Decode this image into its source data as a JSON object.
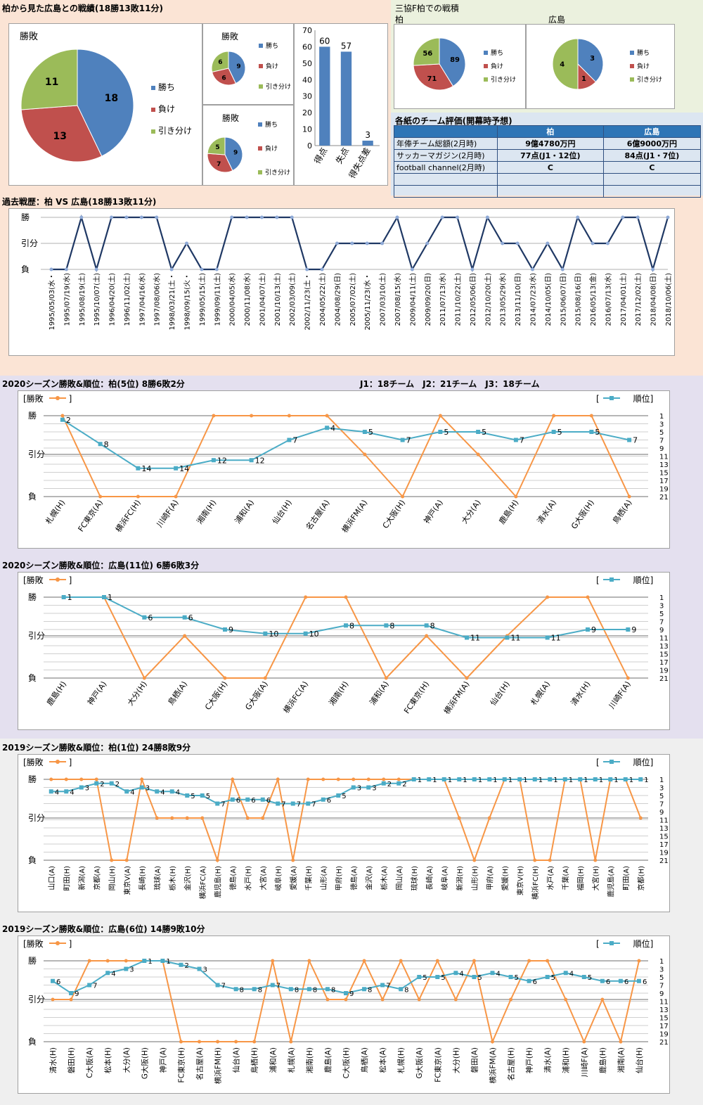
{
  "header": {
    "title": "柏から見た広島との戦績(18勝13敗11分)",
    "mitsukyo_title": "三協F柏での戦積",
    "kashiwa": "柏",
    "hiroshima": "広島"
  },
  "colors": {
    "win": "#4f81bd",
    "loss": "#c0504d",
    "draw": "#9bbb59",
    "rank": "#4bacc6",
    "result": "#f79646",
    "line": "#1f3864"
  },
  "legend": {
    "win": "勝ち",
    "loss": "負け",
    "draw": "引き分け",
    "pie_title": "勝敗"
  },
  "eval_table": {
    "title": "各紙のチーム評価(開幕時予想)",
    "headers": [
      "",
      "柏",
      "広島"
    ],
    "rows": [
      [
        "年俸チーム総額(2月時)",
        "9億4780万円",
        "6億9000万円"
      ],
      [
        "サッカーマガジン(2月時)",
        "77点(J1・12位)",
        "84点(J1・7位)"
      ],
      [
        "football channel(2月時)",
        "C",
        "C"
      ],
      [
        "",
        "",
        ""
      ],
      [
        "",
        "",
        ""
      ]
    ]
  },
  "season_labels": {
    "s1": "2020シーズン勝敗&順位：柏(5位) 8勝6敗2分",
    "s1_info": "J1：18チーム　J2：21チーム　J3：18チーム",
    "s2": "2020シーズン勝敗&順位：広島(11位) 6勝6敗3分",
    "s3": "2019シーズン勝敗&順位：柏(1位) 24勝8敗9分",
    "s4": "2019シーズン勝敗&順位：広島(6位) 14勝9敗10分",
    "legend_result": "[勝敗　　　]",
    "legend_rank": "[　　　　順位]"
  },
  "chart_data": [
    {
      "type": "pie",
      "title": "勝敗",
      "labels": [
        "勝ち",
        "負け",
        "引き分け"
      ],
      "values": [
        18,
        13,
        11
      ]
    },
    {
      "type": "pie",
      "title": "勝敗",
      "labels": [
        "勝ち",
        "負け",
        "引き分け"
      ],
      "values": [
        9,
        6,
        6
      ]
    },
    {
      "type": "pie",
      "title": "勝敗",
      "labels": [
        "勝ち",
        "負け",
        "引き分け"
      ],
      "values": [
        9,
        7,
        5
      ]
    },
    {
      "type": "bar",
      "categories": [
        "得点",
        "失点",
        "得失点差"
      ],
      "values": [
        60,
        57,
        3
      ],
      "ylim": [
        0,
        70
      ],
      "yticks": [
        0,
        10,
        20,
        30,
        40,
        50,
        60,
        70
      ]
    },
    {
      "type": "pie",
      "title": "柏",
      "labels": [
        "勝ち",
        "負け",
        "引き分け"
      ],
      "values": [
        89,
        71,
        56
      ]
    },
    {
      "type": "pie",
      "title": "広島",
      "labels": [
        "勝ち",
        "負け",
        "引き分け"
      ],
      "values": [
        3,
        1,
        4
      ]
    },
    {
      "type": "line",
      "title": "過去戦歴：柏 VS 広島(18勝13敗11分)",
      "y_categories": [
        "負",
        "引分",
        "勝"
      ],
      "x": [
        "1995/05/03(水・",
        "1995/07/19(水)",
        "1995/08/19(土)",
        "1995/10/07(土)",
        "1996/04/20(土)",
        "1996/11/02(土)",
        "1997/04/16(水)",
        "1997/08/06(水)",
        "1998/03/21(土・",
        "1998/09/15(火・",
        "1999/05/15(土)",
        "1999/09/11(土)",
        "2000/04/05(水)",
        "2000/11/08(水)",
        "2001/04/07(土)",
        "2001/10/13(土)",
        "2002/03/09(土)",
        "2002/11/23(土・",
        "2004/05/22(土)",
        "2004/08/29(日)",
        "2005/07/02(土)",
        "2005/11/23(水・",
        "2007/03/10(土)",
        "2007/08/15(水)",
        "2009/04/11(土)",
        "2009/09/20(日)",
        "2011/07/13(水)",
        "2011/10/22(土)",
        "2012/05/06(日)",
        "2012/10/20(土)",
        "2013/05/29(水)",
        "2013/11/10(日)",
        "2014/07/23(水)",
        "2014/10/05(日)",
        "2015/06/07(日)",
        "2015/08/16(日)",
        "2016/05/13(金)",
        "2016/07/13(水)",
        "2017/04/01(土)",
        "2017/12/02(土)",
        "2018/04/08(日)",
        "2018/10/06(土)"
      ],
      "values": [
        0,
        0,
        2,
        0,
        2,
        2,
        2,
        2,
        0,
        1,
        0,
        0,
        2,
        2,
        2,
        2,
        2,
        0,
        0,
        1,
        1,
        1,
        1,
        2,
        0,
        1,
        2,
        2,
        0,
        2,
        1,
        1,
        0,
        1,
        0,
        2,
        1,
        1,
        2,
        2,
        0,
        2
      ]
    },
    {
      "type": "line",
      "title": "2020シーズン勝敗&順位：柏(5位) 8勝6敗2分",
      "x": [
        "札幌(H)",
        "FC東京(A)",
        "横浜FC(H)",
        "川崎F(A)",
        "湘南(H)",
        "浦和(A)",
        "仙台(H)",
        "名古屋(A)",
        "横浜FM(A)",
        "C大阪(H)",
        "神戸(A)",
        "大分(A)",
        "鹿島(H)",
        "清水(A)",
        "G大阪(H)",
        "鳥栖(A)"
      ],
      "series": [
        {
          "name": "勝敗",
          "values": [
            2,
            0,
            0,
            0,
            2,
            2,
            2,
            2,
            1,
            0,
            2,
            1,
            0,
            2,
            2,
            0
          ]
        },
        {
          "name": "順位",
          "values": [
            2,
            8,
            14,
            14,
            12,
            12,
            7,
            4,
            5,
            7,
            5,
            5,
            7,
            5,
            5,
            7
          ]
        }
      ],
      "y_left": [
        "負",
        "引分",
        "勝"
      ],
      "y_right": [
        1,
        3,
        5,
        7,
        9,
        11,
        13,
        15,
        17,
        19,
        21
      ]
    },
    {
      "type": "line",
      "title": "2020シーズン勝敗&順位：広島(11位) 6勝6敗3分",
      "x": [
        "鹿島(H)",
        "神戸(A)",
        "大分(H)",
        "鳥栖(A)",
        "C大阪(H)",
        "G大阪(A)",
        "横浜FC(A)",
        "湘南(H)",
        "浦和(A)",
        "FC東京(H)",
        "横浜FM(A)",
        "仙台(H)",
        "札幌(A)",
        "清水(H)",
        "川崎F(A)"
      ],
      "series": [
        {
          "name": "勝敗",
          "values": [
            2,
            2,
            0,
            1,
            0,
            0,
            2,
            2,
            0,
            1,
            0,
            1,
            2,
            2,
            0
          ]
        },
        {
          "name": "順位",
          "values": [
            1,
            1,
            6,
            6,
            9,
            10,
            10,
            8,
            8,
            8,
            11,
            11,
            11,
            9,
            9
          ]
        }
      ],
      "y_left": [
        "負",
        "引分",
        "勝"
      ],
      "y_right": [
        1,
        3,
        5,
        7,
        9,
        11,
        13,
        15,
        17,
        19,
        21
      ]
    },
    {
      "type": "line",
      "title": "2019シーズン勝敗&順位：柏(1位) 24勝8敗9分",
      "x": [
        "山口(A)",
        "町田(H)",
        "新潟(A)",
        "京都(A)",
        "岡山(H)",
        "東京V(A)",
        "長崎(H)",
        "琉球(A)",
        "栃木(H)",
        "金沢(H)",
        "横浜FC(A)",
        "鹿児島(H)",
        "徳島(A)",
        "水戸(H)",
        "大宮(A)",
        "岐阜(H)",
        "愛媛(A)",
        "千葉(H)",
        "山形(A)",
        "甲府(H)",
        "徳島(A)",
        "金沢(A)",
        "栃木(A)",
        "岡山(A)",
        "琉球(H)",
        "長崎(A)",
        "岐阜(A)",
        "新潟(H)",
        "山形(H)",
        "甲府(A)",
        "愛媛(H)",
        "東京V(H)",
        "横浜FC(H)",
        "水戸(A)",
        "千葉(A)",
        "福岡(H)",
        "大宮(H)",
        "鹿児島(A)",
        "町田(A)",
        "京都(H)"
      ],
      "series": [
        {
          "name": "勝敗",
          "values": [
            2,
            2,
            2,
            2,
            0,
            0,
            2,
            1,
            1,
            1,
            1,
            0,
            2,
            1,
            1,
            2,
            0,
            2,
            2,
            2,
            2,
            2,
            2,
            2,
            2,
            2,
            2,
            1,
            0,
            1,
            2,
            2,
            0,
            0,
            2,
            2,
            0,
            2,
            2,
            1
          ]
        },
        {
          "name": "順位",
          "values": [
            4,
            4,
            3,
            2,
            2,
            4,
            3,
            4,
            4,
            5,
            5,
            7,
            6,
            6,
            6,
            7,
            7,
            7,
            6,
            5,
            3,
            3,
            2,
            2,
            1,
            1,
            1,
            1,
            1,
            1,
            1,
            1,
            1,
            1,
            1,
            1,
            1,
            1,
            1,
            1
          ]
        }
      ],
      "y_left": [
        "負",
        "引分",
        "勝"
      ],
      "y_right": [
        1,
        3,
        5,
        7,
        9,
        11,
        13,
        15,
        17,
        19,
        21
      ]
    },
    {
      "type": "line",
      "title": "2019シーズン勝敗&順位：広島(6位) 14勝9敗10分",
      "x": [
        "清水(H)",
        "磐田(H)",
        "C大阪(A)",
        "松本(H)",
        "大分(A)",
        "G大阪(H)",
        "神戸(A)",
        "FC東京(H)",
        "名古屋(A)",
        "横浜FM(H)",
        "仙台(A)",
        "鳥栖(H)",
        "浦和(A)",
        "札幌(A)",
        "湘南(H)",
        "鹿島(A)",
        "C大阪(H)",
        "鳥栖(A)",
        "松本(A)",
        "札幌(H)",
        "G大阪(A)",
        "FC東京(A)",
        "大分(H)",
        "磐田(A)",
        "横浜FM(A)",
        "名古屋(H)",
        "神戸(H)",
        "清水(A)",
        "浦和(H)",
        "川崎F(A)",
        "鹿島(H)",
        "湘南(A)",
        "仙台(H)"
      ],
      "series": [
        {
          "name": "勝敗",
          "values": [
            1,
            1,
            2,
            2,
            2,
            2,
            2,
            0,
            0,
            0,
            0,
            0,
            2,
            0,
            2,
            1,
            1,
            2,
            1,
            2,
            1,
            2,
            1,
            2,
            0,
            1,
            2,
            2,
            1,
            0,
            1,
            0,
            2
          ]
        },
        {
          "name": "順位",
          "values": [
            6,
            9,
            7,
            4,
            3,
            1,
            1,
            2,
            3,
            7,
            8,
            8,
            7,
            8,
            8,
            8,
            9,
            8,
            7,
            8,
            5,
            5,
            4,
            5,
            4,
            5,
            6,
            5,
            4,
            5,
            6,
            6,
            6
          ]
        }
      ],
      "y_left": [
        "負",
        "引分",
        "勝"
      ],
      "y_right": [
        1,
        3,
        5,
        7,
        9,
        11,
        13,
        15,
        17,
        19,
        21
      ]
    }
  ]
}
